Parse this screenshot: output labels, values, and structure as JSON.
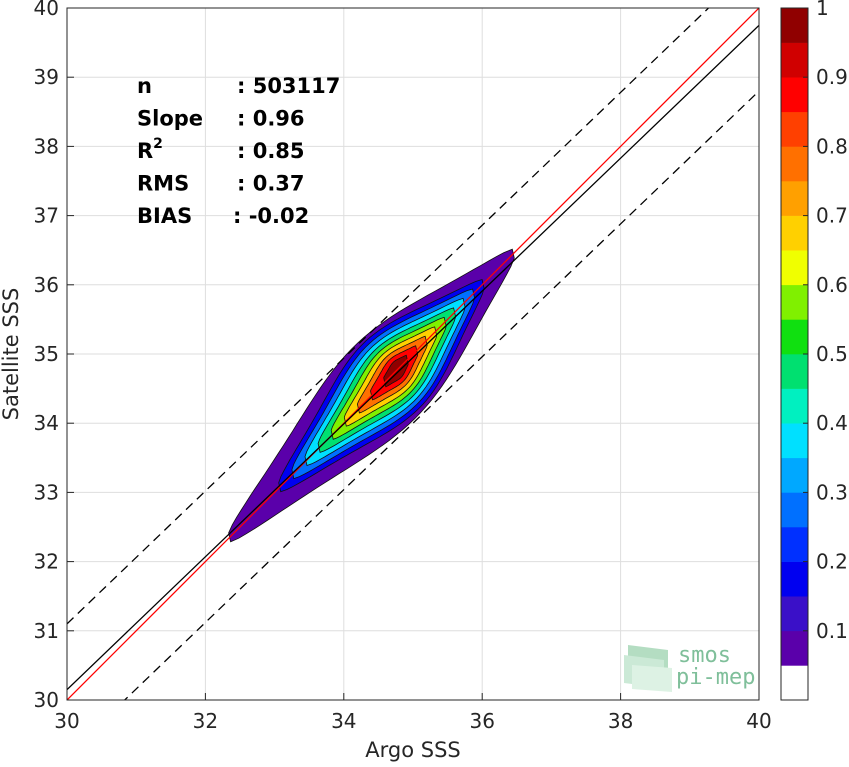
{
  "chart_data": {
    "type": "heatmap",
    "subtype": "density-contour-scatter",
    "xlabel": "Argo SSS",
    "ylabel": "Satellite SSS",
    "xlim": [
      30,
      40
    ],
    "ylim": [
      30,
      40
    ],
    "xticks": [
      30,
      32,
      34,
      36,
      38,
      40
    ],
    "yticks": [
      30,
      31,
      32,
      33,
      34,
      35,
      36,
      37,
      38,
      39,
      40
    ],
    "grid": true,
    "stats": [
      {
        "label": "n",
        "value": ": 503117"
      },
      {
        "label": "Slope",
        "value": ": 0.96"
      },
      {
        "label": "R",
        "sup": "2",
        "value": ": 0.85"
      },
      {
        "label": "RMS",
        "value": ": 0.37"
      },
      {
        "label": "BIAS",
        "value": ": -0.02"
      }
    ],
    "lines": [
      {
        "kind": "identity",
        "color": "#ff0000",
        "style": "solid",
        "x": [
          30,
          40
        ],
        "y": [
          30,
          40
        ]
      },
      {
        "kind": "fit",
        "color": "#000000",
        "style": "solid",
        "slope": 0.96,
        "intercept": 1.35
      },
      {
        "kind": "upper-bound",
        "color": "#000000",
        "style": "dashed",
        "slope": 0.96,
        "intercept": 2.3
      },
      {
        "kind": "lower-bound",
        "color": "#000000",
        "style": "dashed",
        "slope": 0.96,
        "intercept": 0.4
      }
    ],
    "density": {
      "center": [
        34.78,
        34.78
      ],
      "min_point": [
        32.35,
        32.35
      ],
      "max_point": [
        36.45,
        36.45
      ],
      "levels": [
        0.05,
        0.1,
        0.2,
        0.3,
        0.4,
        0.5,
        0.6,
        0.7,
        0.8,
        0.9
      ]
    },
    "colorbar": {
      "ticks": [
        "0.1",
        "0.2",
        "0.3",
        "0.4",
        "0.5",
        "0.6",
        "0.7",
        "0.8",
        "0.9",
        "1"
      ],
      "tick_values": [
        0.1,
        0.2,
        0.3,
        0.4,
        0.5,
        0.6,
        0.7,
        0.8,
        0.9,
        1.0
      ],
      "colors": [
        "#ffffff",
        "#5a00aa",
        "#3a10c8",
        "#0000f0",
        "#0030ff",
        "#0070ff",
        "#00a8ff",
        "#00e0ff",
        "#00f0c0",
        "#00e070",
        "#10e010",
        "#80f000",
        "#f0ff00",
        "#ffd000",
        "#ffa000",
        "#ff7000",
        "#ff4000",
        "#ff0000",
        "#d00000",
        "#900000"
      ]
    },
    "logo": {
      "line1": "smos",
      "line2": "pi-mep"
    }
  }
}
